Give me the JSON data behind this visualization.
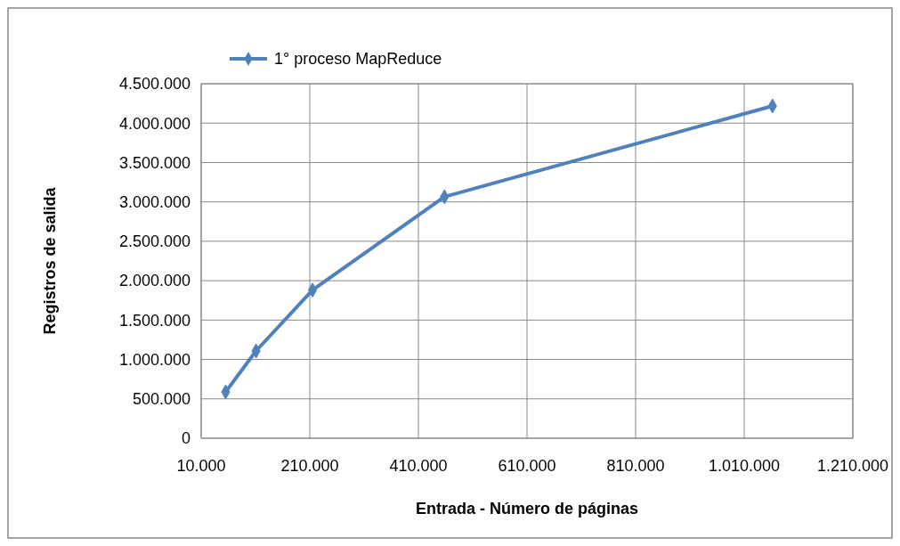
{
  "chart_data": {
    "type": "line",
    "xlabel": "Entrada - Número de páginas",
    "ylabel": "Registros de salida",
    "x": [
      55000,
      111000,
      215000,
      458000,
      1062000
    ],
    "series": [
      {
        "name": "1° proceso MapReduce",
        "color": "#4f81bd",
        "values": [
          587000,
          1108000,
          1880000,
          3065000,
          4217000
        ]
      }
    ],
    "xlim": [
      10000,
      1210000
    ],
    "xticks": [
      {
        "value": 10000,
        "label": "10.000"
      },
      {
        "value": 210000,
        "label": "210.000"
      },
      {
        "value": 410000,
        "label": "410.000"
      },
      {
        "value": 610000,
        "label": "610.000"
      },
      {
        "value": 810000,
        "label": "810.000"
      },
      {
        "value": 1010000,
        "label": "1.010.000"
      },
      {
        "value": 1210000,
        "label": "1.210.000"
      }
    ],
    "ylim": [
      0,
      4500000
    ],
    "yticks": [
      0,
      {
        "value": 500000,
        "label": "500.000"
      },
      {
        "value": 1000000,
        "label": "1.000.000"
      },
      {
        "value": 1500000,
        "label": "1.500.000"
      },
      {
        "value": 2000000,
        "label": "2.000.000"
      },
      {
        "value": 2500000,
        "label": "2.500.000"
      },
      {
        "value": 3000000,
        "label": "3.000.000"
      },
      {
        "value": 3500000,
        "label": "3.500.000"
      },
      {
        "value": 4000000,
        "label": "4.000.000"
      },
      {
        "value": 4500000,
        "label": "4.500.000"
      }
    ],
    "grid": true,
    "legend": "top left",
    "marker": "diamond",
    "line_style": "solid"
  }
}
